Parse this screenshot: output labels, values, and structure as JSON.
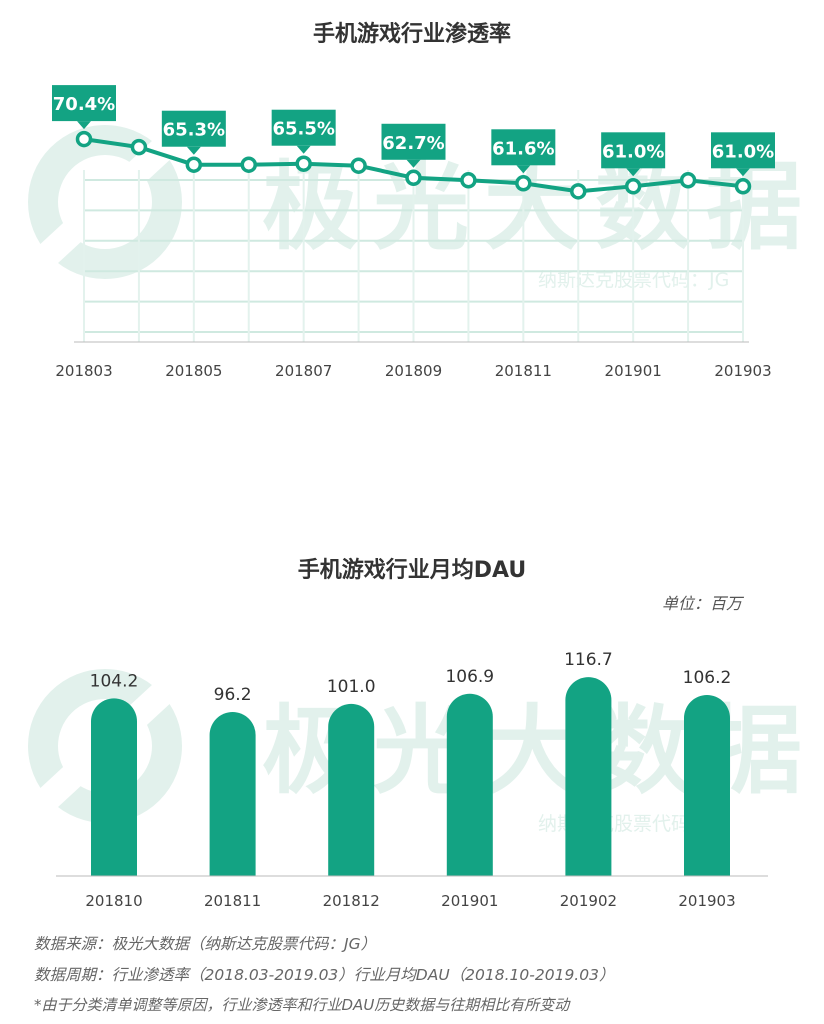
{
  "footer": {
    "source": "数据来源：极光大数据（纳斯达克股票代码：JG）",
    "period": "数据周期：行业渗透率（2018.03-2019.03）行业月均DAU（2018.10-2019.03）",
    "note": "*由于分类清单调整等原因，行业渗透率和行业DAU历史数据与往期相比有所变动"
  },
  "watermark": {
    "brand": "极光大数据",
    "ticker": "纳斯达克股票代码：JG"
  },
  "colors": {
    "accent": "#13a383",
    "watermark": "#e2f1ec"
  },
  "chart_data": [
    {
      "type": "line",
      "title": "手机游戏行业渗透率",
      "x": [
        "201803",
        "201804",
        "201805",
        "201806",
        "201807",
        "201808",
        "201809",
        "201810",
        "201811",
        "201812",
        "201901",
        "201902",
        "201903"
      ],
      "tick_labels": [
        "201803",
        "201805",
        "201807",
        "201809",
        "201811",
        "201901",
        "201903"
      ],
      "series": [
        {
          "values": [
            70.4,
            68.8,
            65.3,
            65.3,
            65.5,
            65.1,
            62.7,
            62.2,
            61.6,
            60.0,
            61.0,
            62.2,
            61.0
          ]
        }
      ],
      "data_labels": [
        {
          "index": 0,
          "text": "70.4%"
        },
        {
          "index": 2,
          "text": "65.3%"
        },
        {
          "index": 4,
          "text": "65.5%"
        },
        {
          "index": 6,
          "text": "62.7%"
        },
        {
          "index": 8,
          "text": "61.6%"
        },
        {
          "index": 10,
          "text": "61.0%"
        },
        {
          "index": 12,
          "text": "61.0%"
        }
      ],
      "ylim": [
        30,
        75
      ],
      "grid": true,
      "xlabel": "",
      "ylabel": ""
    },
    {
      "type": "bar",
      "title": "手机游戏行业月均DAU",
      "unit": "单位：百万",
      "categories": [
        "201810",
        "201811",
        "201812",
        "201901",
        "201902",
        "201903"
      ],
      "values": [
        104.2,
        96.2,
        101.0,
        106.9,
        116.7,
        106.2
      ],
      "labels": [
        "104.2",
        "96.2",
        "101.0",
        "106.9",
        "116.7",
        "106.2"
      ],
      "ylim": [
        0,
        120
      ],
      "grid": false,
      "xlabel": "",
      "ylabel": ""
    }
  ]
}
